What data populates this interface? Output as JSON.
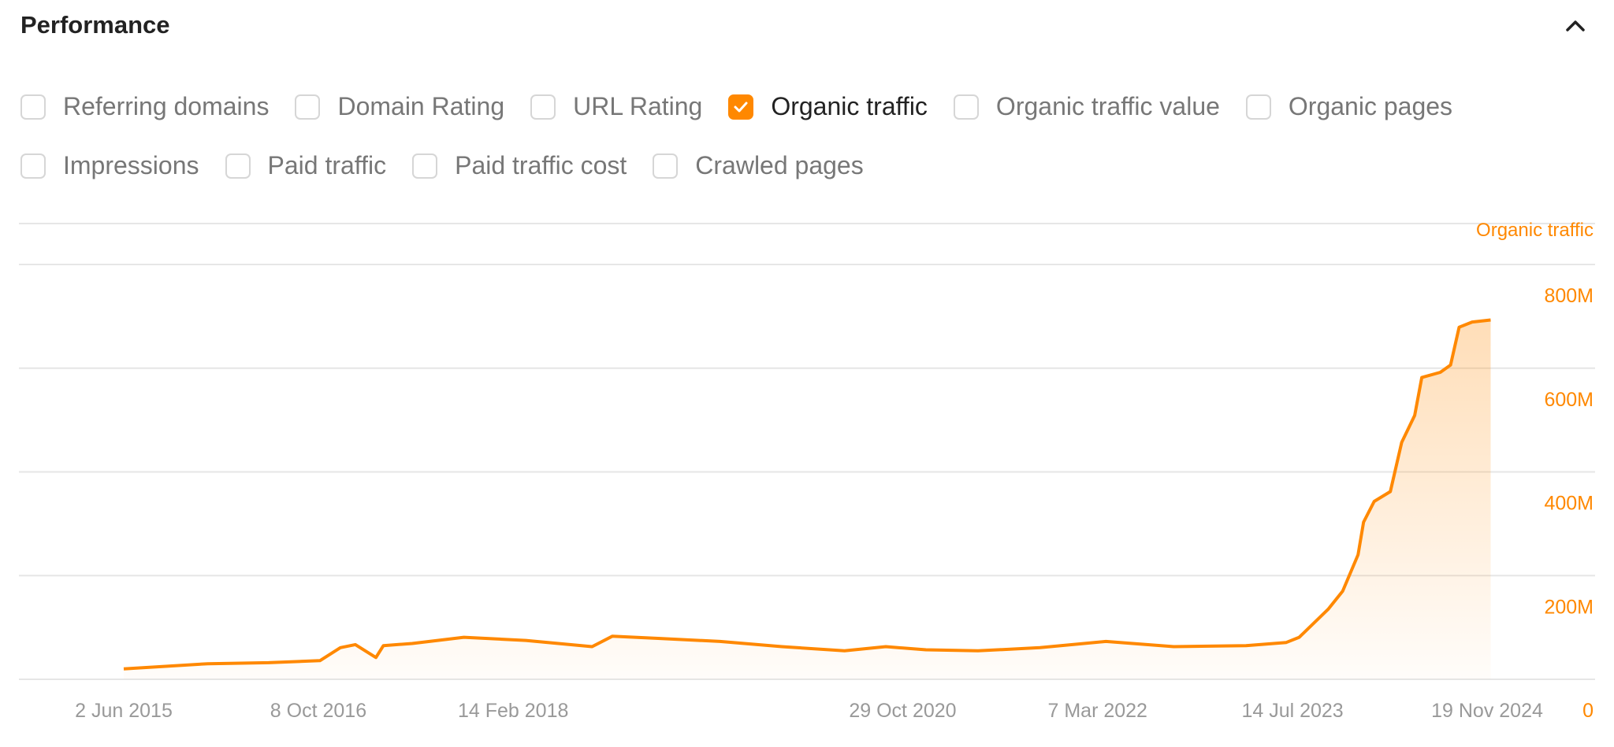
{
  "header": {
    "title": "Performance",
    "collapse_icon": "chevron-up-icon"
  },
  "metrics": {
    "row1": [
      {
        "label": "Referring domains",
        "checked": false
      },
      {
        "label": "Domain Rating",
        "checked": false
      },
      {
        "label": "URL Rating",
        "checked": false
      },
      {
        "label": "Organic traffic",
        "checked": true
      },
      {
        "label": "Organic traffic value",
        "checked": false
      },
      {
        "label": "Organic pages",
        "checked": false
      }
    ],
    "row2": [
      {
        "label": "Impressions",
        "checked": false
      },
      {
        "label": "Paid traffic",
        "checked": false
      },
      {
        "label": "Paid traffic cost",
        "checked": false
      },
      {
        "label": "Crawled pages",
        "checked": false
      }
    ]
  },
  "colors": {
    "accent": "#ff8800",
    "grid": "#e6e6e6",
    "axis_text": "#999999"
  },
  "chart_data": {
    "type": "area",
    "series": [
      {
        "name": "Organic traffic",
        "color": "#ff8800",
        "points": [
          [
            "2015-06-02",
            20
          ],
          [
            "2016-01-01",
            30
          ],
          [
            "2016-06-03",
            32
          ],
          [
            "2016-10-12",
            36
          ],
          [
            "2016-12-03",
            61
          ],
          [
            "2017-01-10",
            67
          ],
          [
            "2017-03-03",
            42
          ],
          [
            "2017-03-22",
            65
          ],
          [
            "2017-06-03",
            69
          ],
          [
            "2017-10-12",
            81
          ],
          [
            "2018-03-18",
            75
          ],
          [
            "2018-09-02",
            63
          ],
          [
            "2018-10-23",
            83
          ],
          [
            "2019-02-16",
            79
          ],
          [
            "2019-07-23",
            73
          ],
          [
            "2019-12-27",
            63
          ],
          [
            "2020-06-03",
            55
          ],
          [
            "2020-09-16",
            63
          ],
          [
            "2020-12-27",
            57
          ],
          [
            "2021-05-08",
            55
          ],
          [
            "2021-10-12",
            61
          ],
          [
            "2022-03-28",
            73
          ],
          [
            "2022-09-16",
            63
          ],
          [
            "2023-03-18",
            65
          ],
          [
            "2023-06-28",
            71
          ],
          [
            "2023-07-31",
            81
          ],
          [
            "2023-10-12",
            135
          ],
          [
            "2023-11-18",
            170
          ],
          [
            "2023-12-27",
            240
          ],
          [
            "2024-01-10",
            303
          ],
          [
            "2024-02-06",
            343
          ],
          [
            "2024-03-18",
            362
          ],
          [
            "2024-04-16",
            457
          ],
          [
            "2024-05-19",
            509
          ],
          [
            "2024-06-06",
            582
          ],
          [
            "2024-07-23",
            592
          ],
          [
            "2024-08-18",
            606
          ],
          [
            "2024-09-09",
            679
          ],
          [
            "2024-10-12",
            689
          ],
          [
            "2024-11-28",
            693
          ]
        ]
      }
    ],
    "y_unit": "M",
    "ylabel": "Organic traffic",
    "ylim": [
      0,
      800
    ],
    "yticks": [
      "0",
      "200M",
      "400M",
      "600M",
      "800M"
    ],
    "ytick_values": [
      0,
      200,
      400,
      600,
      800
    ],
    "xticks": [
      "2 Jun 2015",
      "8 Oct 2016",
      "14 Feb 2018",
      "29 Oct 2020",
      "7 Mar 2022",
      "14 Jul 2023",
      "19 Nov 2024"
    ],
    "xtick_dates": [
      "2015-06-02",
      "2016-10-08",
      "2018-02-14",
      "2020-10-29",
      "2022-03-07",
      "2023-07-14",
      "2024-11-19"
    ],
    "grid": true,
    "y_axis_position": "right"
  }
}
